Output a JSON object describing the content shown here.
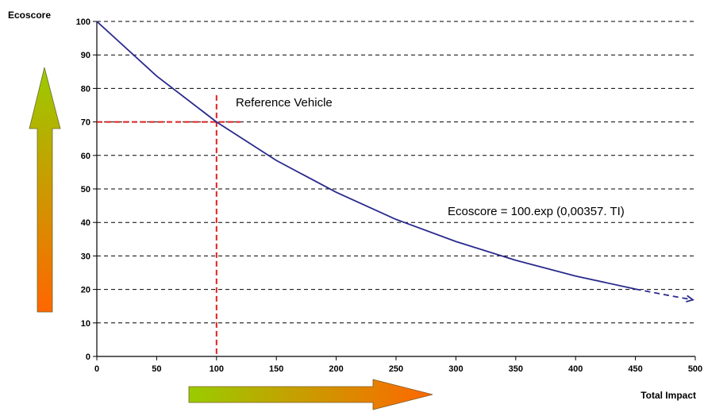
{
  "chart_data": {
    "type": "line",
    "xlabel": "Total Impact",
    "ylabel": "Ecoscore",
    "xlim": [
      0,
      500
    ],
    "ylim": [
      0,
      100
    ],
    "xticks": [
      0,
      50,
      100,
      150,
      200,
      250,
      300,
      350,
      400,
      450,
      500
    ],
    "yticks": [
      0,
      10,
      20,
      30,
      40,
      50,
      60,
      70,
      80,
      90,
      100
    ],
    "grid": "horizontal dashed",
    "series": [
      {
        "style": "solid",
        "color": "#2a2a8c",
        "x": [
          0,
          50,
          100,
          150,
          200,
          250,
          300,
          350,
          400,
          450
        ],
        "y": [
          100,
          83.7,
          70.0,
          58.5,
          49.0,
          40.9,
          34.3,
          28.7,
          24.0,
          20.1
        ]
      },
      {
        "style": "dashed-arrow",
        "color": "#2a2a8c",
        "x": [
          450,
          475,
          498
        ],
        "y": [
          20.1,
          18.4,
          16.9
        ]
      }
    ],
    "reference": {
      "label": "Reference Vehicle",
      "x": 100,
      "y": 70,
      "color": "#e02020"
    },
    "annotations": [
      {
        "text": "Ecoscore = 100.exp (0,00357. TI)"
      }
    ],
    "arrows": [
      {
        "direction": "up",
        "from_color": "#ff6600",
        "to_color": "#99cc00"
      },
      {
        "direction": "right",
        "from_color": "#99cc00",
        "to_color": "#ff6600"
      }
    ]
  }
}
